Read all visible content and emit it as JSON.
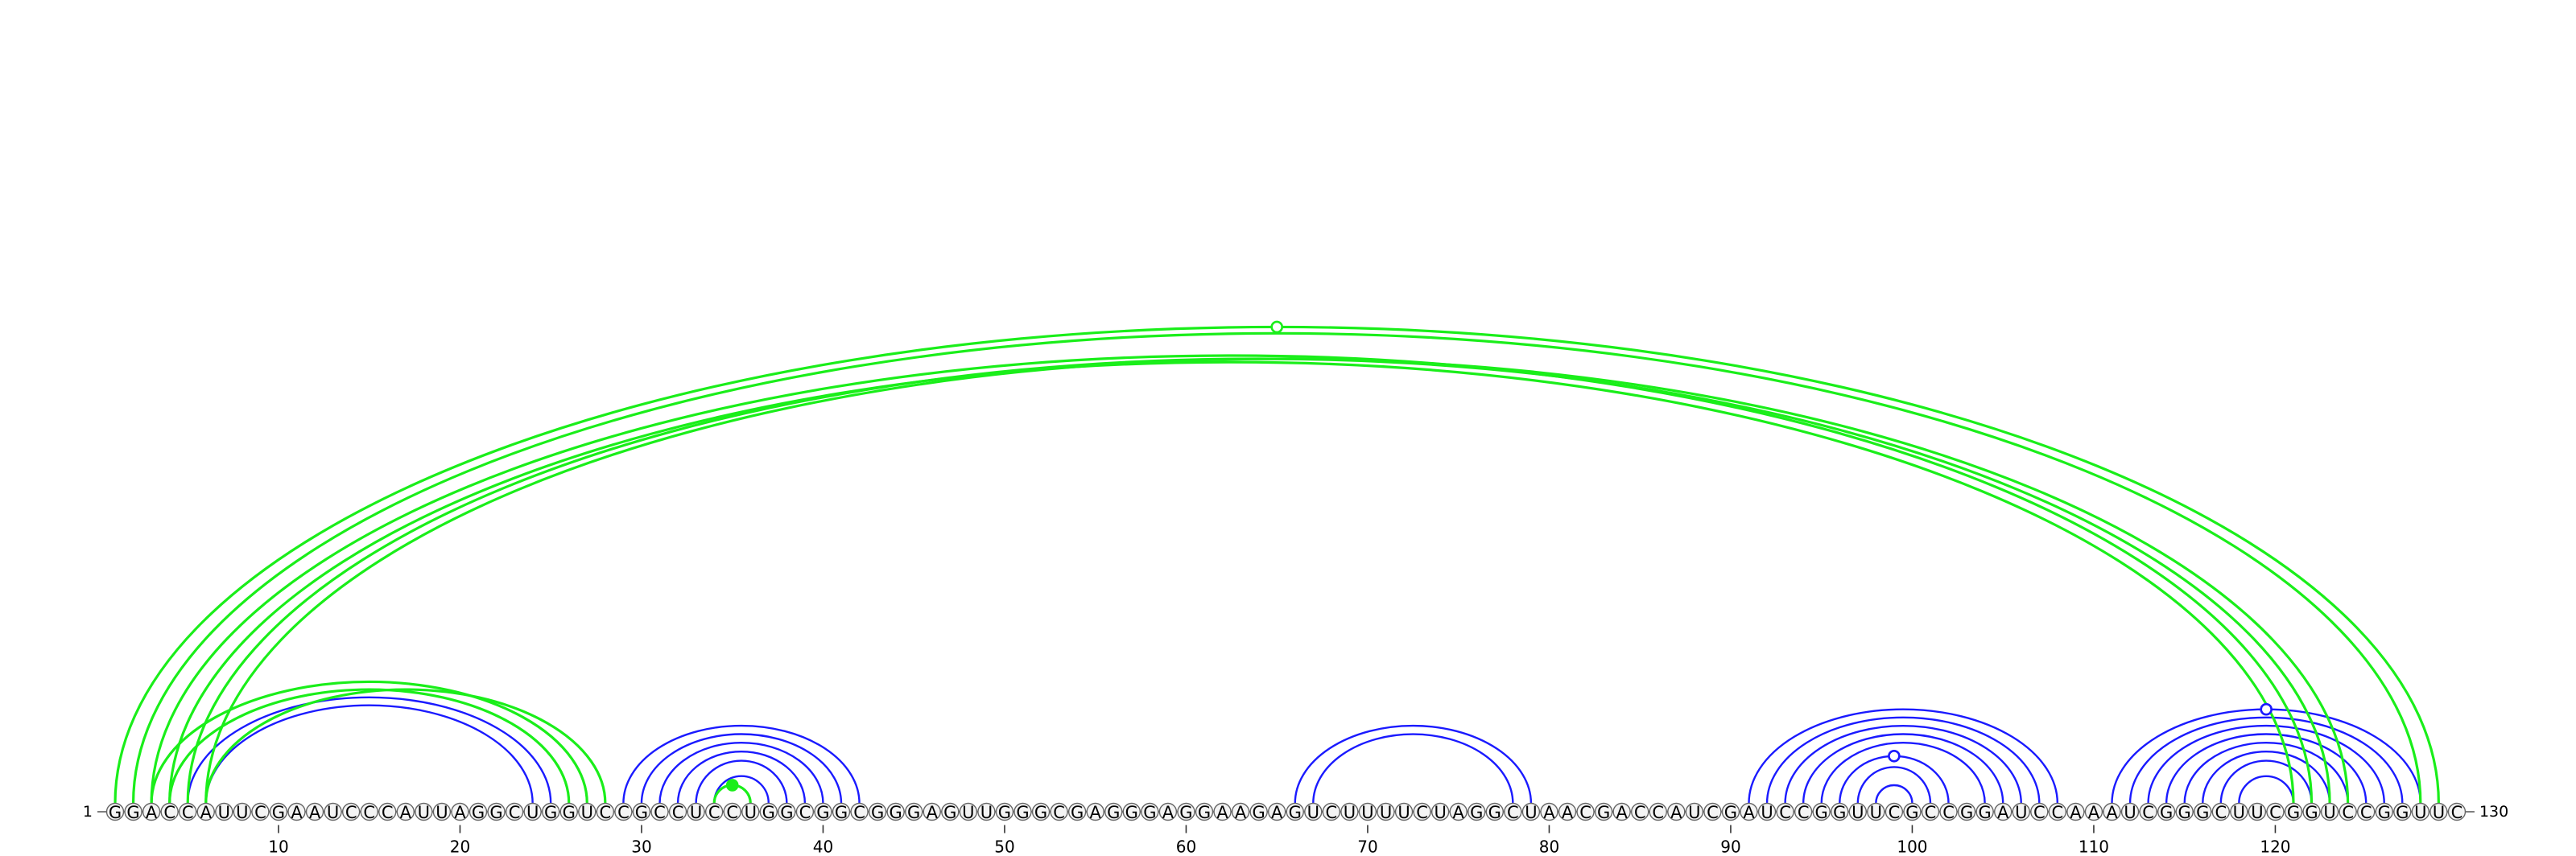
{
  "chart_data": {
    "type": "arc-diagram",
    "sequence": "GGACCAUUCGAAUCCCAUUAGGCUGGUCCGCCUCCUGGCGGCGGGAGUUGGGCGAGGGAGGAAGAGUCUUUUCUAGGCUAACGACCAUCGAUCCGGUUCGCCGGAUCCAAAUCGGGCUUCGGUCCGGUUC",
    "start_label": "1",
    "end_label": "130",
    "x_ticks": [
      10,
      20,
      30,
      40,
      50,
      60,
      70,
      80,
      90,
      100,
      110,
      120
    ],
    "colors": {
      "blue": "#1a1aff",
      "green": "#1aee1a",
      "axis": "#555555"
    },
    "arc_sets": [
      {
        "name": "blue",
        "color": "#1a1aff",
        "pairs": [
          [
            5,
            25
          ],
          [
            6,
            24
          ],
          [
            29,
            42
          ],
          [
            30,
            41
          ],
          [
            31,
            40
          ],
          [
            32,
            39
          ],
          [
            33,
            38
          ],
          [
            34,
            37
          ],
          [
            66,
            79
          ],
          [
            67,
            78
          ],
          [
            91,
            108
          ],
          [
            92,
            107
          ],
          [
            93,
            106
          ],
          [
            94,
            105
          ],
          [
            95,
            104
          ],
          [
            96,
            102
          ],
          [
            97,
            101
          ],
          [
            98,
            100
          ],
          [
            111,
            128
          ],
          [
            112,
            127
          ],
          [
            113,
            126
          ],
          [
            114,
            125
          ],
          [
            115,
            124
          ],
          [
            116,
            123
          ],
          [
            117,
            122
          ],
          [
            118,
            121
          ]
        ]
      },
      {
        "name": "green",
        "color": "#1aee1a",
        "pairs": [
          [
            1,
            129
          ],
          [
            2,
            128
          ],
          [
            3,
            122
          ],
          [
            4,
            121
          ],
          [
            5,
            123
          ],
          [
            6,
            124
          ],
          [
            3,
            27
          ],
          [
            4,
            26
          ],
          [
            6,
            28
          ],
          [
            34,
            36
          ]
        ]
      }
    ],
    "markers": [
      {
        "set": "green",
        "position": 65,
        "fill": "none"
      },
      {
        "set": "green",
        "position": 34.5,
        "fill": "filled"
      },
      {
        "set": "blue",
        "position": 99,
        "fill": "none"
      },
      {
        "set": "blue",
        "position": 119.5,
        "fill": "none"
      }
    ]
  }
}
